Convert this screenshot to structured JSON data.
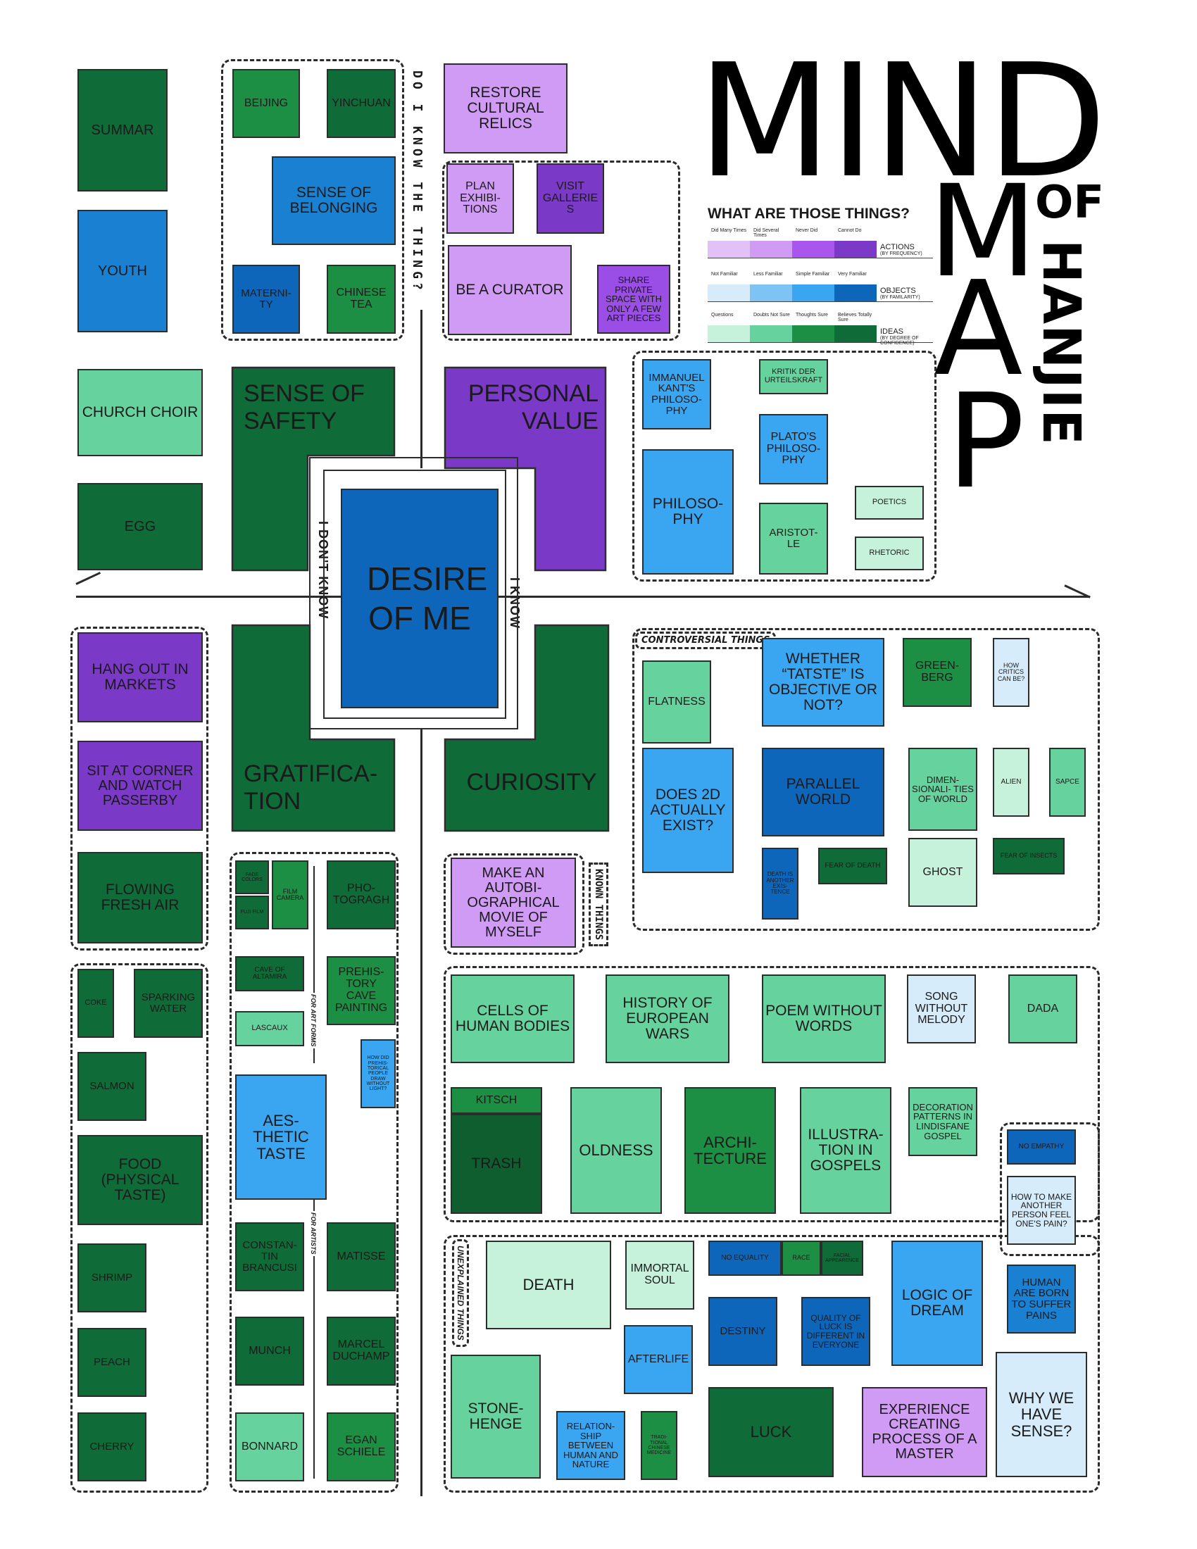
{
  "title": {
    "mind": "MIND",
    "m": "M",
    "a": "A",
    "p": "P",
    "of": "OF",
    "hanjie": "HANJIE"
  },
  "legend": {
    "heading": "WHAT ARE THOSE THINGS?",
    "actions": {
      "labels": [
        "Did Many Times",
        "Did Several Times",
        "Never Did",
        "Cannot Do"
      ],
      "name": "ACTIONS",
      "sub": "(BY FREQUENCY)",
      "colors": [
        "#e2c1f7",
        "#cf9bf4",
        "#a956ef",
        "#7b39c8"
      ]
    },
    "objects": {
      "labels": [
        "Not Familiar",
        "Less Familiar",
        "Simple Familiar",
        "Very Familiar"
      ],
      "name": "OBJECTS",
      "sub": "(BY FAMILARITY)",
      "colors": [
        "#d7ecfb",
        "#7dc4f5",
        "#3aa5f0",
        "#0e66bb"
      ]
    },
    "ideas": {
      "labels": [
        "Questions",
        "Doubts Not Sure",
        "Thoughts Sure",
        "Believes Totally Sure"
      ],
      "name": "IDEAS",
      "sub": "(BY DEGREE OF CONFIDENCE)",
      "colors": [
        "#c6f2dc",
        "#66d39e",
        "#1c8f44",
        "#0f6b37"
      ]
    }
  },
  "axes": {
    "top": "DO I KNOW THE THING?",
    "left": "I DON'T KNOW",
    "right": "I KNOW",
    "known": "KNOWN THINGS",
    "controversial": "CONTROVERSIAL THINGS",
    "unexplained": "UNEXPLAINED THINGS",
    "artforms": "FOR ART FORMS",
    "artists": "FOR ARTISTS"
  },
  "center": "DESIRE OF ME",
  "quadrants": {
    "safety": "SENSE OF SAFETY",
    "value": "PERSONAL VALUE",
    "grat": "GRATIFICA- TION",
    "curio": "CURIOSITY"
  },
  "nodes": {
    "summar": "SUMMAR",
    "youth": "YOUTH",
    "choir": "CHURCH CHOIR",
    "egg": "EGG",
    "beijing": "BEIJING",
    "yinchuan": "YINCHUAN",
    "belonging": "SENSE OF BELONGING",
    "maternity": "MATERNI- TY",
    "chinese_tea": "CHINESE TEA",
    "restore": "RESTORE CULTURAL RELICS",
    "plan_exh": "PLAN EXHIBI- TIONS",
    "visit_gal": "VISIT GALLERIES",
    "curator": "BE A CURATOR",
    "share_space": "SHARE PRIVATE SPACE WITH ONLY A FEW ART PIECES",
    "kant": "IMMANUEL KANT'S PHILOSO- PHY",
    "kritik": "KRITIK DER URTEILSKRAFT",
    "plato": "PLATO'S PHILOSO- PHY",
    "philosophy": "PHILOSO- PHY",
    "aristotle": "ARISTOT- LE",
    "poetics": "POETICS",
    "rhetoric": "RHETORIC",
    "hang_out": "HANG OUT IN MARKETS",
    "sit_corner": "SIT AT CORNER AND WATCH PASSERBY",
    "flowing_air": "FLOWING FRESH AIR",
    "coke": "COKE",
    "sparking": "SPARKING WATER",
    "salmon": "SALMON",
    "food": "FOOD (PHYSICAL TASTE)",
    "shrimp": "SHRIMP",
    "peach": "PEACH",
    "cherry": "CHERRY",
    "fade_colors": "FADE COLORS",
    "film_camera": "FILM CAMERA",
    "fuji": "FUJI FILM",
    "photograph": "PHO- TOGRAGH",
    "altamira": "CAVE OF ALTAMIRA",
    "lascaux": "LASCAUX",
    "prehistory": "PREHIS- TORY CAVE PAINTING",
    "how_did": "HOW DID PREHIS- TORICAL PEOPLE DRAW WITHOUT LIGHT?",
    "aesthetic": "AES- THETIC TASTE",
    "brancusi": "CONSTAN- TIN BRANCUSI",
    "matisse": "MATISSE",
    "munch": "MUNCH",
    "duchamp": "MARCEL DUCHAMP",
    "bonnard": "BONNARD",
    "schiele": "EGAN SCHIELE",
    "flatness": "FLATNESS",
    "tatste": "WHETHER “TATSTE” IS OBJECTIVE OR NOT?",
    "greenberg": "GREEN- BERG",
    "critics": "HOW CRITICS CAN BE?",
    "does2d": "DOES 2D ACTUALLY EXIST?",
    "parallel": "PARALLEL WORLD",
    "dimensionalities": "DIMEN- SIONALI- TIES OF WORLD",
    "alien": "ALIEN",
    "sapce": "SAPCE",
    "death_exist": "DEATH IS ANOTHER EXIS- TENCE",
    "fear_death": "FEAR OF DEATH",
    "ghost": "GHOST",
    "fear_insects": "FEAR OF INSECTS",
    "movie": "MAKE AN AUTOBI- OGRAPHICAL MOVIE OF MYSELF",
    "cells": "CELLS OF HUMAN BODIES",
    "history_wars": "HISTORY OF EUROPEAN WARS",
    "poem": "POEM WITHOUT WORDS",
    "song": "SONG WITHOUT MELODY",
    "dada": "DADA",
    "kitsch": "KITSCH",
    "trash": "TRASH",
    "oldness": "OLDNESS",
    "architecture": "ARCHI- TECTURE",
    "illustration": "ILLUSTRA- TION IN GOSPELS",
    "decoration": "DECORATION PATTERNS IN LINDISFANE GOSPEL",
    "no_empathy": "NO EMPATHY",
    "how_make": "HOW TO MAKE ANOTHER PERSON FEEL ONE'S PAIN?",
    "human_born": "HUMAN ARE BORN TO SUFFER PAINS",
    "why_sense": "WHY WE HAVE SENSE?",
    "death": "DEATH",
    "immortal": "IMMORTAL SOUL",
    "no_equality": "NO EQUALITY",
    "race": "RACE",
    "facial": "FACIAL APPEARENCE",
    "logic_dream": "LOGIC OF DREAM",
    "destiny": "DESTINY",
    "quality_luck": "QUALITY OF LUCK IS DIFFERENT IN EVERYONE",
    "afterlife": "AFTERLIFE",
    "stonehenge": "STONE- HENGE",
    "relationship": "RELATION- SHIP BETWEEN HUMAN AND NATURE",
    "tcm": "TRADI- TIONAL CHINESE MEDICINE",
    "luck": "LUCK",
    "experience": "EXPERIENCE CREATING PROCESS OF A MASTER"
  }
}
